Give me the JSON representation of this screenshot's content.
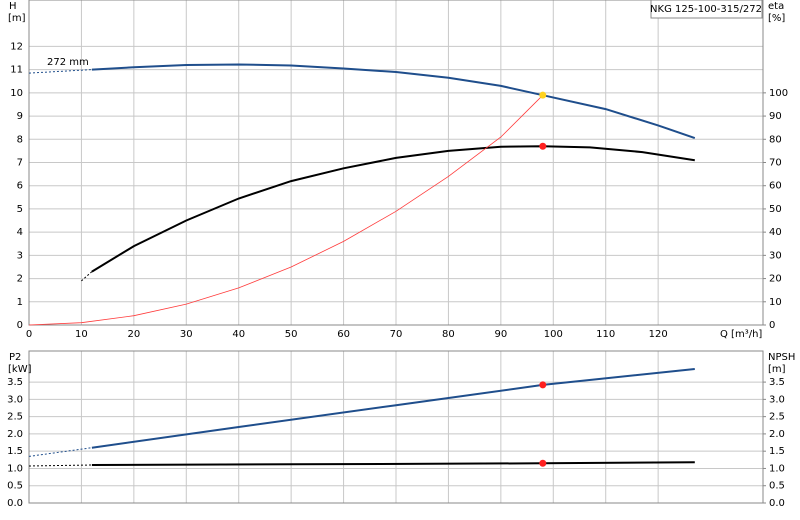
{
  "chart_data": [
    {
      "type": "line",
      "title": "NKG 125-100-315/272",
      "xlabel": "Q [m³/h]",
      "ylabel": "H",
      "yunit": "[m]",
      "y2label": "eta",
      "y2unit": "[%]",
      "annotation": "272 mm",
      "xlim": [
        0,
        140
      ],
      "xticks": [
        0,
        10,
        20,
        30,
        40,
        50,
        60,
        70,
        80,
        90,
        100,
        110,
        120
      ],
      "ylim": [
        0,
        14
      ],
      "yticks": [
        0,
        1,
        2,
        3,
        4,
        5,
        6,
        7,
        8,
        9,
        10,
        11,
        12
      ],
      "y2lim": [
        0,
        140
      ],
      "y2ticks": [
        0,
        10,
        20,
        30,
        40,
        50,
        60,
        70,
        80,
        90,
        100
      ],
      "grid": true,
      "series": [
        {
          "color": "#1f4e8c",
          "dashed": true,
          "x": [
            0,
            12
          ],
          "values": [
            10.85,
            11.0
          ]
        },
        {
          "color": "#1f4e8c",
          "x": [
            12,
            20,
            30,
            40,
            50,
            60,
            70,
            80,
            90,
            98,
            110,
            120,
            127
          ],
          "values": [
            11.0,
            11.1,
            11.2,
            11.22,
            11.18,
            11.05,
            10.9,
            10.65,
            10.3,
            9.9,
            9.3,
            8.6,
            8.05
          ]
        },
        {
          "color": "#000000",
          "axis": "y2",
          "dashed": true,
          "x": [
            10,
            12
          ],
          "values": [
            19,
            23
          ]
        },
        {
          "color": "#000000",
          "axis": "y2",
          "x": [
            12,
            20,
            30,
            40,
            50,
            60,
            70,
            80,
            90,
            98,
            107,
            117,
            127
          ],
          "values": [
            23,
            34,
            45,
            54.5,
            62,
            67.5,
            72,
            75,
            76.8,
            77,
            76.5,
            74.5,
            71
          ]
        },
        {
          "color": "#ff3b3b",
          "thin": true,
          "x": [
            0,
            10,
            20,
            30,
            40,
            50,
            60,
            70,
            80,
            90,
            98
          ],
          "values": [
            0,
            0.1,
            0.4,
            0.9,
            1.6,
            2.5,
            3.6,
            4.9,
            6.4,
            8.1,
            9.9
          ]
        },
        {
          "color": "#ffd21f",
          "marker": true,
          "x": [
            98
          ],
          "values": [
            9.9
          ]
        },
        {
          "color": "#ff2020",
          "marker": true,
          "axis": "y2",
          "x": [
            98
          ],
          "values": [
            77
          ]
        }
      ]
    },
    {
      "type": "line",
      "ylabel": "P2",
      "yunit": "[kW]",
      "y2label": "NPSH",
      "y2unit": "[m]",
      "xlim": [
        0,
        140
      ],
      "xticks": [
        0,
        10,
        20,
        30,
        40,
        50,
        60,
        70,
        80,
        90,
        100,
        110,
        120
      ],
      "ylim": [
        0,
        4.4
      ],
      "yticks": [
        {
          "value": 0,
          "label": "0.0"
        },
        0.5,
        {
          "value": 1,
          "label": "1.0"
        },
        1.5,
        {
          "value": 2,
          "label": "2.0"
        },
        2.5,
        {
          "value": 3,
          "label": "3.0"
        },
        3.5
      ],
      "y2lim": [
        0,
        4.4
      ],
      "y2ticks": [
        {
          "value": 0,
          "label": "0.0"
        },
        0.5,
        {
          "value": 1,
          "label": "1.0"
        },
        1.5,
        {
          "value": 2,
          "label": "2.0"
        },
        2.5,
        {
          "value": 3,
          "label": "3.0"
        },
        3.5
      ],
      "grid": true,
      "series": [
        {
          "color": "#1f4e8c",
          "dashed": true,
          "x": [
            0,
            12
          ],
          "values": [
            1.35,
            1.6
          ]
        },
        {
          "color": "#1f4e8c",
          "x": [
            12,
            40,
            70,
            98,
            127
          ],
          "values": [
            1.6,
            2.2,
            2.83,
            3.42,
            3.88
          ]
        },
        {
          "color": "#000000",
          "axis": "y2",
          "dashed": true,
          "x": [
            0,
            12
          ],
          "values": [
            1.07,
            1.1
          ]
        },
        {
          "color": "#000000",
          "axis": "y2",
          "x": [
            12,
            50,
            98,
            127
          ],
          "values": [
            1.1,
            1.12,
            1.15,
            1.18
          ]
        },
        {
          "color": "#ff2020",
          "marker": true,
          "x": [
            98
          ],
          "values": [
            3.42
          ]
        },
        {
          "color": "#ff2020",
          "marker": true,
          "axis": "y2",
          "x": [
            98
          ],
          "values": [
            1.15
          ]
        }
      ]
    }
  ]
}
